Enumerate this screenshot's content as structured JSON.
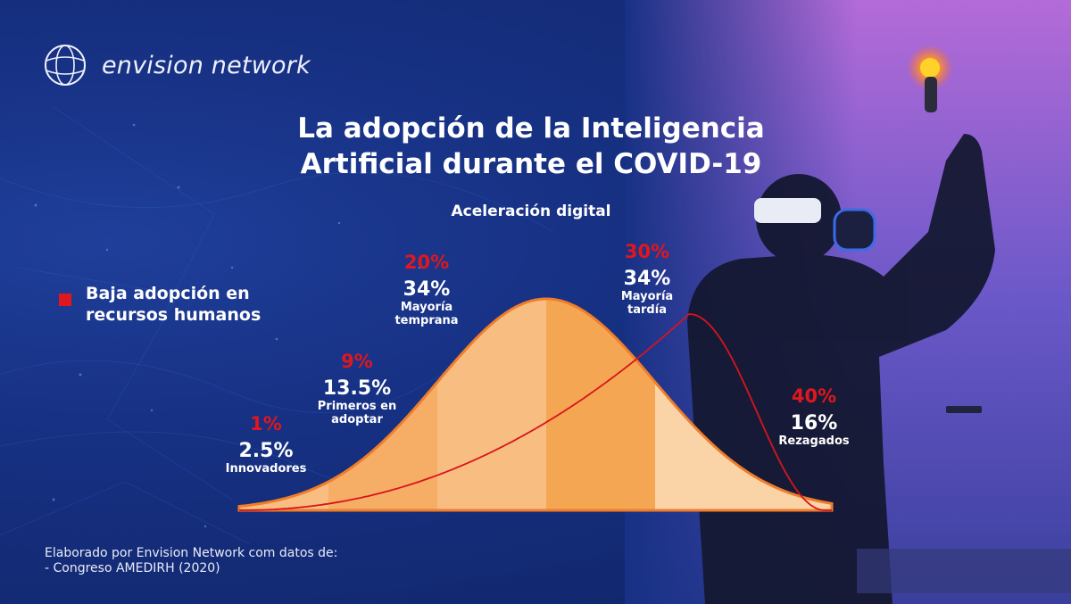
{
  "brand": {
    "name": "envision network"
  },
  "title_line1": "La adopción de la Inteligencia",
  "title_line2": "Artificial durante el COVID-19",
  "footer": {
    "line1": "Elaborado por Envision Network com datos de:",
    "line2": "- Congreso AMEDIRH (2020)"
  },
  "colors": {
    "accent_red": "#e0171d",
    "curve_orange": "#f5a653",
    "background_blue": "#173184"
  },
  "chart_data": {
    "type": "area",
    "subtitle": "Aceleración digital",
    "legend": {
      "label": "Baja adopción en recursos humanos",
      "placement": "left"
    },
    "categories": [
      "Innovadores",
      "Primeros en adoptar",
      "Mayoría temprana",
      "Mayoría tardía",
      "Rezagados"
    ],
    "series": [
      {
        "values": [
          2.5,
          13.5,
          34,
          34,
          16
        ],
        "labels": [
          "2.5%",
          "13.5%",
          "34%",
          "34%",
          "16%"
        ]
      },
      {
        "name": "Baja adopción en recursos humanos",
        "values": [
          1,
          9,
          20,
          30,
          40
        ],
        "labels": [
          "1%",
          "9%",
          "20%",
          "30%",
          "40%"
        ]
      }
    ]
  }
}
